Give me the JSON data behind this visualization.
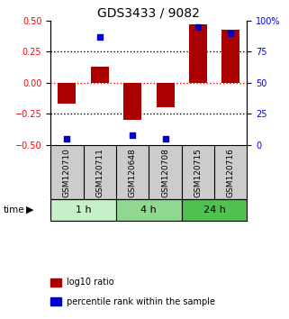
{
  "title": "GDS3433 / 9082",
  "samples": [
    "GSM120710",
    "GSM120711",
    "GSM120648",
    "GSM120708",
    "GSM120715",
    "GSM120716"
  ],
  "log10_ratio": [
    -0.17,
    0.13,
    -0.3,
    -0.2,
    0.47,
    0.43
  ],
  "percentile_rank": [
    5,
    87,
    8,
    5,
    95,
    90
  ],
  "time_groups": [
    {
      "label": "1 h",
      "start": 0,
      "end": 2,
      "color": "#c8f0c8"
    },
    {
      "label": "4 h",
      "start": 2,
      "end": 4,
      "color": "#90d890"
    },
    {
      "label": "24 h",
      "start": 4,
      "end": 6,
      "color": "#50c050"
    }
  ],
  "bar_color": "#aa0000",
  "dot_color": "#0000cc",
  "ylim_left": [
    -0.5,
    0.5
  ],
  "ylim_right": [
    0,
    100
  ],
  "yticks_left": [
    -0.5,
    -0.25,
    0,
    0.25,
    0.5
  ],
  "yticks_right": [
    0,
    25,
    50,
    75,
    100
  ],
  "hlines_black": [
    -0.25,
    0.25
  ],
  "hline_red": 0,
  "background_color": "#ffffff",
  "plot_bg": "#ffffff",
  "sample_bg": "#cccccc",
  "legend_items": [
    {
      "label": "log10 ratio",
      "color": "#aa0000"
    },
    {
      "label": "percentile rank within the sample",
      "color": "#0000cc"
    }
  ]
}
